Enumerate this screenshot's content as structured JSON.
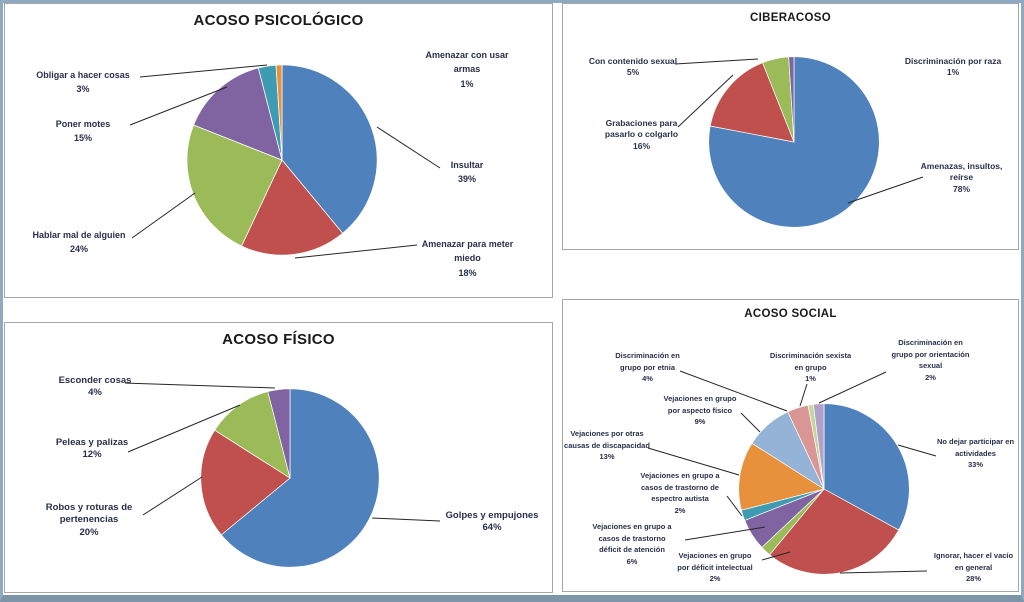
{
  "chart_data": [
    {
      "type": "pie",
      "title": "ACOSO PSICOLÓGICO",
      "labels": [
        "Insultar",
        "Amenazar para meter miedo",
        "Hablar mal de alguien",
        "Poner motes",
        "Obligar a hacer cosas",
        "Amenazar con usar armas"
      ],
      "values": [
        39,
        18,
        24,
        15,
        3,
        1
      ],
      "colors": [
        "#4f81bd",
        "#c0504d",
        "#9bbb59",
        "#8064a2",
        "#3d9bb2",
        "#e8913d"
      ],
      "legend": "none",
      "label_style": "outside-callouts-with-percent",
      "start_angle_deg": 0,
      "direction": "clockwise"
    },
    {
      "type": "pie",
      "title": "CIBERACOSO",
      "labels": [
        "Amenazas, insultos, reírse",
        "Grabaciones para pasarlo o colgarlo",
        "Con contenido sexual",
        "Discriminación por raza"
      ],
      "values": [
        78,
        16,
        5,
        1
      ],
      "colors": [
        "#4f81bd",
        "#c0504d",
        "#9bbb59",
        "#8064a2"
      ],
      "legend": "none",
      "label_style": "outside-callouts-with-percent",
      "start_angle_deg": 0,
      "direction": "clockwise"
    },
    {
      "type": "pie",
      "title": "ACOSO FÍSICO",
      "labels": [
        "Golpes y empujones",
        "Robos y roturas de pertenencias",
        "Peleas y palizas",
        "Esconder cosas"
      ],
      "values": [
        64,
        20,
        12,
        4
      ],
      "colors": [
        "#4f81bd",
        "#c0504d",
        "#9bbb59",
        "#8064a2"
      ],
      "legend": "none",
      "label_style": "outside-callouts-with-percent",
      "start_angle_deg": 0,
      "direction": "clockwise"
    },
    {
      "type": "pie",
      "title": "ACOSO SOCIAL",
      "labels": [
        "No dejar participar en actividades",
        "Ignorar, hacer el vacío en general",
        "Vejaciones en grupo por déficit intelectual",
        "Vejaciones en grupo a casos de trastorno déficit de atención",
        "Vejaciones en grupo a casos de trastorno de espectro autista",
        "Vejaciones por otras causas de discapacidad",
        "Vejaciones en grupo por aspecto físico",
        "Discriminación en grupo por etnia",
        "Discriminación sexista en grupo",
        "Discriminación en grupo por orientación sexual"
      ],
      "values": [
        33,
        28,
        2,
        6,
        2,
        13,
        9,
        4,
        1,
        2
      ],
      "colors": [
        "#4f81bd",
        "#c0504d",
        "#9bbb59",
        "#8064a2",
        "#3d9bb2",
        "#e8913d",
        "#95b3d7",
        "#d99694",
        "#c3d69b",
        "#b1a0c7"
      ],
      "legend": "none",
      "label_style": "outside-callouts-with-percent",
      "start_angle_deg": 0,
      "direction": "clockwise"
    }
  ]
}
